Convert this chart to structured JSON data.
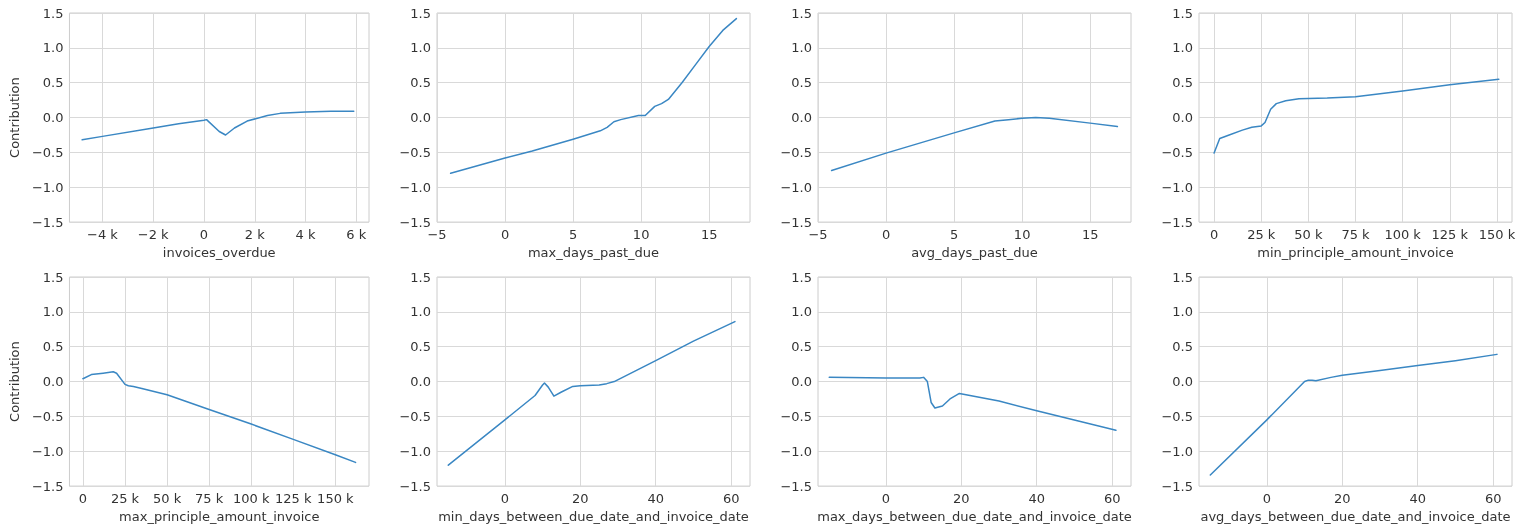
{
  "chart_data": [
    {
      "type": "line",
      "xlabel": "invoices_overdue",
      "ylabel": "Contribution",
      "grid": true,
      "xlim": [
        -5300,
        6500
      ],
      "ylim": [
        -1.5,
        1.5
      ],
      "xticks": [
        {
          "value": -4000,
          "label": "−4 k"
        },
        {
          "value": -2000,
          "label": "−2 k"
        },
        0,
        {
          "value": 2000,
          "label": "2 k"
        },
        {
          "value": 4000,
          "label": "4 k"
        },
        {
          "value": 6000,
          "label": "6 k"
        }
      ],
      "yticks": [
        {
          "value": -1.5,
          "label": "−1.5"
        },
        {
          "value": -1,
          "label": "−1.0"
        },
        {
          "value": -0.5,
          "label": "−0.5"
        },
        {
          "value": 0,
          "label": "0.0"
        },
        {
          "value": 0.5,
          "label": "0.5"
        },
        {
          "value": 1,
          "label": "1.0"
        },
        {
          "value": 1.5,
          "label": "1.5"
        }
      ],
      "x": [
        -4800,
        -4000,
        -2000,
        -1000,
        0,
        100,
        600,
        850,
        1200,
        1700,
        2500,
        3000,
        4000,
        5000,
        5900
      ],
      "series": [
        {
          "color": "#3a87c3",
          "values": [
            -0.32,
            -0.27,
            -0.15,
            -0.09,
            -0.04,
            -0.03,
            -0.2,
            -0.25,
            -0.15,
            -0.05,
            0.03,
            0.06,
            0.08,
            0.09,
            0.09
          ]
        }
      ]
    },
    {
      "type": "line",
      "xlabel": "max_days_past_due",
      "grid": true,
      "xlim": [
        -5,
        18
      ],
      "ylim": [
        -1.5,
        1.5
      ],
      "xticks": [
        {
          "value": -5,
          "label": "−5"
        },
        0,
        5,
        10,
        15
      ],
      "yticks": [
        {
          "value": -1.5,
          "label": "−1.5"
        },
        {
          "value": -1,
          "label": "−1.0"
        },
        {
          "value": -0.5,
          "label": "−0.5"
        },
        {
          "value": 0,
          "label": "0.0"
        },
        {
          "value": 0.5,
          "label": "0.5"
        },
        {
          "value": 1,
          "label": "1.0"
        },
        {
          "value": 1.5,
          "label": "1.5"
        }
      ],
      "x": [
        -4,
        0,
        2,
        5,
        7,
        7.5,
        8,
        8.5,
        9.8,
        10.3,
        11,
        11.5,
        12,
        13,
        14,
        15,
        16,
        17
      ],
      "series": [
        {
          "color": "#3a87c3",
          "values": [
            -0.8,
            -0.58,
            -0.48,
            -0.31,
            -0.19,
            -0.14,
            -0.06,
            -0.03,
            0.03,
            0.03,
            0.16,
            0.2,
            0.26,
            0.5,
            0.76,
            1.02,
            1.25,
            1.42
          ]
        }
      ]
    },
    {
      "type": "line",
      "xlabel": "avg_days_past_due",
      "grid": true,
      "xlim": [
        -5,
        18
      ],
      "ylim": [
        -1.5,
        1.5
      ],
      "xticks": [
        {
          "value": -5,
          "label": "−5"
        },
        0,
        5,
        10,
        15
      ],
      "yticks": [
        {
          "value": -1.5,
          "label": "−1.5"
        },
        {
          "value": -1,
          "label": "−1.0"
        },
        {
          "value": -0.5,
          "label": "−0.5"
        },
        {
          "value": 0,
          "label": "0.0"
        },
        {
          "value": 0.5,
          "label": "0.5"
        },
        {
          "value": 1,
          "label": "1.0"
        },
        {
          "value": 1.5,
          "label": "1.5"
        }
      ],
      "x": [
        -4,
        0,
        5,
        8,
        9,
        10,
        11,
        12,
        15,
        17
      ],
      "series": [
        {
          "color": "#3a87c3",
          "values": [
            -0.76,
            -0.51,
            -0.22,
            -0.05,
            -0.03,
            -0.01,
            0,
            -0.01,
            -0.08,
            -0.13
          ]
        }
      ]
    },
    {
      "type": "line",
      "xlabel": "min_principle_amount_invoice",
      "grid": true,
      "xlim": [
        -8000,
        158000
      ],
      "ylim": [
        -1.5,
        1.5
      ],
      "xticks": [
        0,
        {
          "value": 25000,
          "label": "25 k"
        },
        {
          "value": 50000,
          "label": "50 k"
        },
        {
          "value": 75000,
          "label": "75 k"
        },
        {
          "value": 100000,
          "label": "100 k"
        },
        {
          "value": 125000,
          "label": "125 k"
        },
        {
          "value": 150000,
          "label": "150 k"
        }
      ],
      "yticks": [
        {
          "value": -1.5,
          "label": "−1.5"
        },
        {
          "value": -1,
          "label": "−1.0"
        },
        {
          "value": -0.5,
          "label": "−0.5"
        },
        {
          "value": 0,
          "label": "0.0"
        },
        {
          "value": 0.5,
          "label": "0.5"
        },
        {
          "value": 1,
          "label": "1.0"
        },
        {
          "value": 1.5,
          "label": "1.5"
        }
      ],
      "x": [
        0,
        3000,
        8000,
        15000,
        20000,
        25000,
        27000,
        30000,
        33000,
        38000,
        45000,
        60000,
        75000,
        100000,
        125000,
        151000
      ],
      "series": [
        {
          "color": "#3a87c3",
          "values": [
            -0.51,
            -0.3,
            -0.25,
            -0.18,
            -0.14,
            -0.12,
            -0.07,
            0.12,
            0.2,
            0.24,
            0.27,
            0.28,
            0.3,
            0.38,
            0.47,
            0.55
          ]
        }
      ]
    },
    {
      "type": "line",
      "xlabel": "max_principle_amount_invoice",
      "ylabel": "Contribution",
      "grid": true,
      "xlim": [
        -8000,
        170000
      ],
      "ylim": [
        -1.5,
        1.5
      ],
      "xticks": [
        0,
        {
          "value": 25000,
          "label": "25 k"
        },
        {
          "value": 50000,
          "label": "50 k"
        },
        {
          "value": 75000,
          "label": "75 k"
        },
        {
          "value": 100000,
          "label": "100 k"
        },
        {
          "value": 125000,
          "label": "125 k"
        },
        {
          "value": 150000,
          "label": "150 k"
        }
      ],
      "yticks": [
        {
          "value": -1.5,
          "label": "−1.5"
        },
        {
          "value": -1,
          "label": "−1.0"
        },
        {
          "value": -0.5,
          "label": "−0.5"
        },
        {
          "value": 0,
          "label": "0.0"
        },
        {
          "value": 0.5,
          "label": "0.5"
        },
        {
          "value": 1,
          "label": "1.0"
        },
        {
          "value": 1.5,
          "label": "1.5"
        }
      ],
      "x": [
        0,
        5000,
        12000,
        18000,
        20000,
        25000,
        27000,
        30000,
        35000,
        50000,
        75000,
        100000,
        125000,
        150000,
        162000
      ],
      "series": [
        {
          "color": "#3a87c3",
          "values": [
            0.04,
            0.1,
            0.12,
            0.14,
            0.12,
            -0.04,
            -0.06,
            -0.07,
            -0.1,
            -0.19,
            -0.4,
            -0.61,
            -0.83,
            -1.05,
            -1.16
          ]
        }
      ]
    },
    {
      "type": "line",
      "xlabel": "min_days_between_due_date_and_invoice_date",
      "grid": true,
      "xlim": [
        -18,
        65
      ],
      "ylim": [
        -1.5,
        1.5
      ],
      "xticks": [
        0,
        20,
        40,
        60
      ],
      "yticks": [
        {
          "value": -1.5,
          "label": "−1.5"
        },
        {
          "value": -1,
          "label": "−1.0"
        },
        {
          "value": -0.5,
          "label": "−0.5"
        },
        {
          "value": 0,
          "label": "0.0"
        },
        {
          "value": 0.5,
          "label": "0.5"
        },
        {
          "value": 1,
          "label": "1.0"
        },
        {
          "value": 1.5,
          "label": "1.5"
        }
      ],
      "x": [
        -15,
        0,
        8,
        10,
        10.5,
        11.5,
        13,
        15,
        18,
        20,
        25,
        27,
        29,
        40,
        50,
        61
      ],
      "series": [
        {
          "color": "#3a87c3",
          "values": [
            -1.2,
            -0.55,
            -0.2,
            -0.05,
            -0.02,
            -0.08,
            -0.21,
            -0.15,
            -0.07,
            -0.06,
            -0.05,
            -0.03,
            0,
            0.3,
            0.58,
            0.86
          ]
        }
      ]
    },
    {
      "type": "line",
      "xlabel": "max_days_between_due_date_and_invoice_date",
      "grid": true,
      "xlim": [
        -18,
        65
      ],
      "ylim": [
        -1.5,
        1.5
      ],
      "xticks": [
        0,
        20,
        40,
        60
      ],
      "yticks": [
        {
          "value": -1.5,
          "label": "−1.5"
        },
        {
          "value": -1,
          "label": "−1.0"
        },
        {
          "value": -0.5,
          "label": "−0.5"
        },
        {
          "value": 0,
          "label": "0.0"
        },
        {
          "value": 0.5,
          "label": "0.5"
        },
        {
          "value": 1,
          "label": "1.0"
        },
        {
          "value": 1.5,
          "label": "1.5"
        }
      ],
      "x": [
        -15,
        0,
        9,
        10,
        11,
        12,
        13,
        15,
        17,
        19.5,
        30,
        40,
        61
      ],
      "series": [
        {
          "color": "#3a87c3",
          "values": [
            0.06,
            0.05,
            0.05,
            0.06,
            0,
            -0.3,
            -0.38,
            -0.35,
            -0.25,
            -0.17,
            -0.28,
            -0.42,
            -0.7
          ]
        }
      ]
    },
    {
      "type": "line",
      "xlabel": "avg_days_between_due_date_and_invoice_date",
      "grid": true,
      "xlim": [
        -18,
        65
      ],
      "ylim": [
        -1.5,
        1.5
      ],
      "xticks": [
        0,
        20,
        40,
        60
      ],
      "yticks": [
        {
          "value": -1.5,
          "label": "−1.5"
        },
        {
          "value": -1,
          "label": "−1.0"
        },
        {
          "value": -0.5,
          "label": "−0.5"
        },
        {
          "value": 0,
          "label": "0.0"
        },
        {
          "value": 0.5,
          "label": "0.5"
        },
        {
          "value": 1,
          "label": "1.0"
        },
        {
          "value": 1.5,
          "label": "1.5"
        }
      ],
      "x": [
        -15,
        0,
        10,
        11,
        12,
        13,
        17,
        20,
        30,
        40,
        50,
        61
      ],
      "series": [
        {
          "color": "#3a87c3",
          "values": [
            -1.34,
            -0.55,
            0,
            0.02,
            0.02,
            0.01,
            0.06,
            0.09,
            0.16,
            0.23,
            0.3,
            0.39
          ]
        }
      ]
    }
  ]
}
